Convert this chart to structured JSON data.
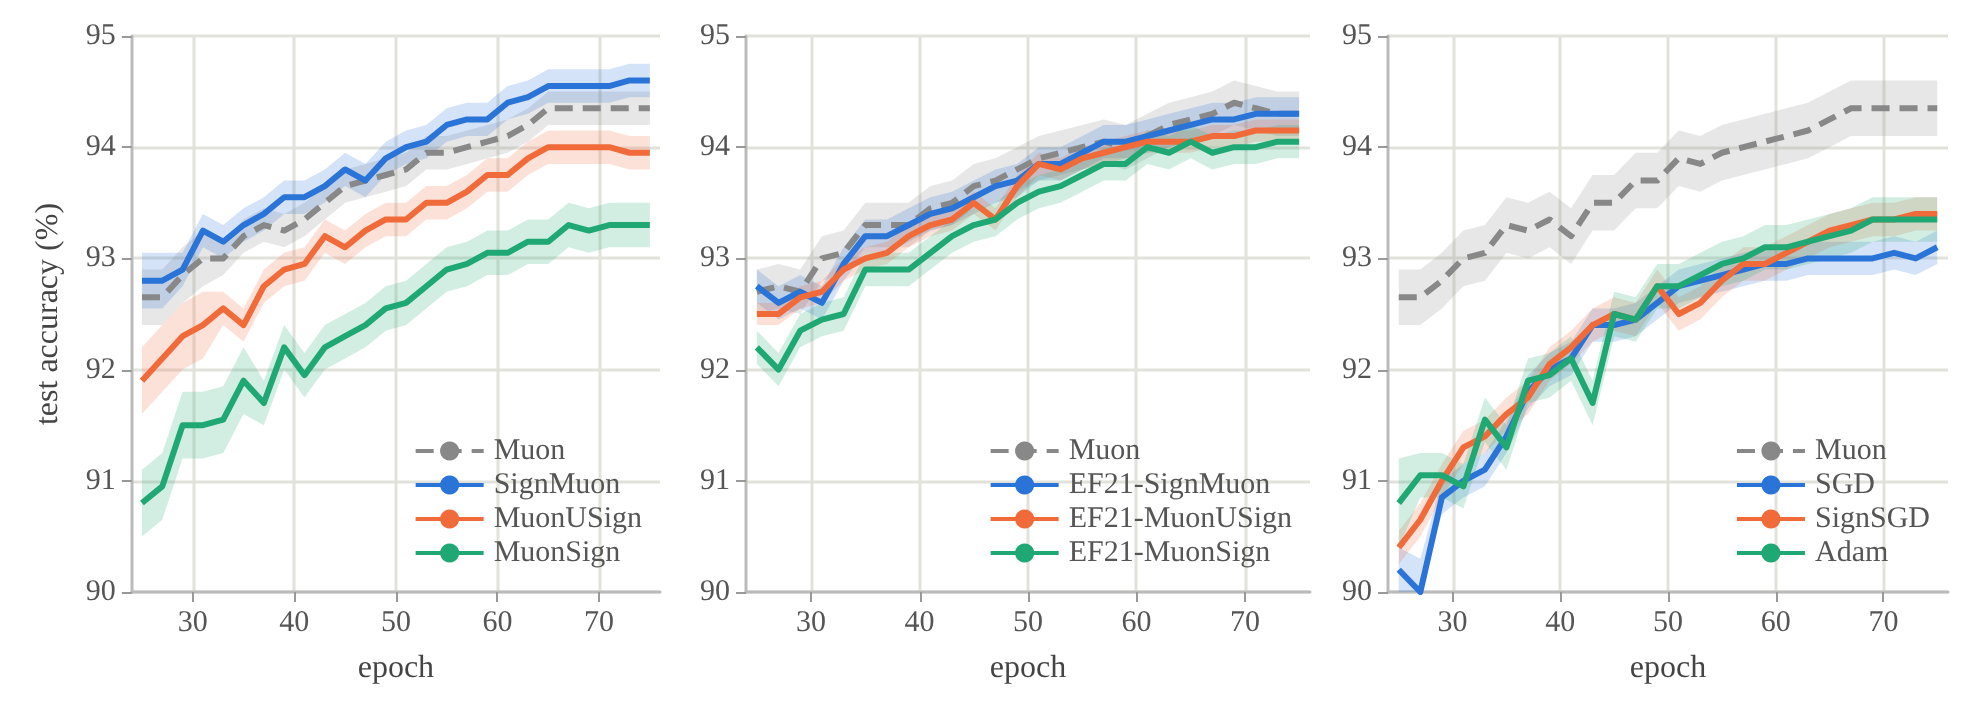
{
  "chart_data": [
    {
      "type": "line",
      "xlabel": "epoch",
      "ylabel": "test accuracy (%)",
      "xlim": [
        24,
        76
      ],
      "ylim": [
        90,
        95
      ],
      "xticks": [
        30,
        40,
        50,
        60,
        70
      ],
      "yticks": [
        90,
        91,
        92,
        93,
        94,
        95
      ],
      "grid": true,
      "legend": "bottom right",
      "x": [
        25,
        27,
        29,
        31,
        33,
        35,
        37,
        39,
        41,
        43,
        45,
        47,
        49,
        51,
        53,
        55,
        57,
        59,
        61,
        63,
        65,
        67,
        69,
        71,
        73,
        75
      ],
      "series": [
        {
          "name": "Muon",
          "color": "#888888",
          "line_style": "dashed",
          "values": [
            92.65,
            92.65,
            92.85,
            93.0,
            93.0,
            93.2,
            93.3,
            93.25,
            93.35,
            93.5,
            93.65,
            93.7,
            93.75,
            93.8,
            93.95,
            93.95,
            94.0,
            94.05,
            94.1,
            94.2,
            94.35,
            94.35,
            94.35,
            94.35,
            94.35,
            94.35
          ],
          "lower": [
            92.4,
            92.4,
            92.6,
            92.75,
            92.85,
            93.05,
            93.15,
            93.1,
            93.2,
            93.35,
            93.5,
            93.55,
            93.6,
            93.65,
            93.8,
            93.8,
            93.85,
            93.9,
            93.95,
            94.05,
            94.2,
            94.2,
            94.2,
            94.2,
            94.2,
            94.2
          ],
          "upper": [
            92.9,
            92.9,
            93.1,
            93.25,
            93.15,
            93.35,
            93.45,
            93.4,
            93.5,
            93.65,
            93.8,
            93.85,
            93.9,
            93.95,
            94.1,
            94.1,
            94.15,
            94.2,
            94.25,
            94.35,
            94.5,
            94.5,
            94.5,
            94.5,
            94.5,
            94.5
          ]
        },
        {
          "name": "SignMuon",
          "color": "#2a74d8",
          "values": [
            92.8,
            92.8,
            92.9,
            93.25,
            93.15,
            93.3,
            93.4,
            93.55,
            93.55,
            93.65,
            93.8,
            93.7,
            93.9,
            94.0,
            94.05,
            94.2,
            94.25,
            94.25,
            94.4,
            94.45,
            94.55,
            94.55,
            94.55,
            94.55,
            94.6,
            94.6
          ],
          "lower": [
            92.55,
            92.55,
            92.75,
            93.1,
            93.0,
            93.15,
            93.25,
            93.4,
            93.4,
            93.5,
            93.65,
            93.55,
            93.75,
            93.85,
            93.9,
            94.05,
            94.1,
            94.1,
            94.25,
            94.3,
            94.4,
            94.4,
            94.4,
            94.4,
            94.45,
            94.45
          ],
          "upper": [
            93.05,
            93.05,
            93.05,
            93.4,
            93.3,
            93.45,
            93.55,
            93.7,
            93.7,
            93.8,
            93.95,
            93.85,
            94.05,
            94.15,
            94.2,
            94.35,
            94.4,
            94.4,
            94.55,
            94.6,
            94.7,
            94.7,
            94.7,
            94.7,
            94.75,
            94.75
          ]
        },
        {
          "name": "MuonUSign",
          "color": "#f06a3a",
          "values": [
            91.9,
            92.1,
            92.3,
            92.4,
            92.55,
            92.4,
            92.75,
            92.9,
            92.95,
            93.2,
            93.1,
            93.25,
            93.35,
            93.35,
            93.5,
            93.5,
            93.6,
            93.75,
            93.75,
            93.9,
            94.0,
            94.0,
            94.0,
            94.0,
            93.95,
            93.95
          ],
          "lower": [
            91.6,
            91.8,
            92.0,
            92.1,
            92.4,
            92.25,
            92.6,
            92.75,
            92.8,
            93.05,
            92.95,
            93.1,
            93.2,
            93.2,
            93.35,
            93.35,
            93.45,
            93.6,
            93.6,
            93.75,
            93.85,
            93.85,
            93.85,
            93.85,
            93.8,
            93.8
          ],
          "upper": [
            92.2,
            92.4,
            92.6,
            92.7,
            92.7,
            92.55,
            92.9,
            93.05,
            93.1,
            93.35,
            93.25,
            93.4,
            93.5,
            93.5,
            93.65,
            93.65,
            93.75,
            93.9,
            93.9,
            94.05,
            94.15,
            94.15,
            94.15,
            94.15,
            94.1,
            94.1
          ]
        },
        {
          "name": "MuonSign",
          "color": "#20a874",
          "values": [
            90.8,
            90.95,
            91.5,
            91.5,
            91.55,
            91.9,
            91.7,
            92.2,
            91.95,
            92.2,
            92.3,
            92.4,
            92.55,
            92.6,
            92.75,
            92.9,
            92.95,
            93.05,
            93.05,
            93.15,
            93.15,
            93.3,
            93.25,
            93.3,
            93.3,
            93.3
          ],
          "lower": [
            90.5,
            90.65,
            91.2,
            91.2,
            91.25,
            91.6,
            91.5,
            92.0,
            91.75,
            92.0,
            92.1,
            92.2,
            92.35,
            92.4,
            92.55,
            92.7,
            92.75,
            92.85,
            92.85,
            92.95,
            92.95,
            93.1,
            93.05,
            93.1,
            93.1,
            93.1
          ],
          "upper": [
            91.1,
            91.25,
            91.8,
            91.8,
            91.85,
            92.2,
            91.9,
            92.4,
            92.15,
            92.4,
            92.5,
            92.6,
            92.75,
            92.8,
            92.95,
            93.1,
            93.15,
            93.25,
            93.25,
            93.35,
            93.35,
            93.5,
            93.45,
            93.5,
            93.5,
            93.5
          ]
        }
      ]
    },
    {
      "type": "line",
      "xlabel": "epoch",
      "xlim": [
        24,
        76
      ],
      "ylim": [
        90,
        95
      ],
      "xticks": [
        30,
        40,
        50,
        60,
        70
      ],
      "yticks": [
        90,
        91,
        92,
        93,
        94,
        95
      ],
      "grid": true,
      "legend": "bottom right",
      "x": [
        25,
        27,
        29,
        31,
        33,
        35,
        37,
        39,
        41,
        43,
        45,
        47,
        49,
        51,
        53,
        55,
        57,
        59,
        61,
        63,
        65,
        67,
        69,
        71,
        73,
        75
      ],
      "series": [
        {
          "name": "Muon",
          "color": "#888888",
          "line_style": "dashed",
          "values": [
            92.7,
            92.75,
            92.7,
            93.0,
            93.05,
            93.3,
            93.3,
            93.3,
            93.45,
            93.5,
            93.65,
            93.7,
            93.8,
            93.9,
            93.95,
            94.0,
            94.05,
            94.0,
            94.1,
            94.2,
            94.25,
            94.3,
            94.4,
            94.35,
            94.3,
            94.3
          ],
          "lower": [
            92.5,
            92.55,
            92.5,
            92.8,
            92.85,
            93.1,
            93.1,
            93.1,
            93.25,
            93.3,
            93.45,
            93.5,
            93.6,
            93.7,
            93.75,
            93.8,
            93.85,
            93.8,
            93.9,
            94.0,
            94.05,
            94.1,
            94.2,
            94.15,
            94.1,
            94.1
          ],
          "upper": [
            92.9,
            92.95,
            92.9,
            93.2,
            93.25,
            93.5,
            93.5,
            93.5,
            93.65,
            93.7,
            93.85,
            93.9,
            94.0,
            94.1,
            94.15,
            94.2,
            94.25,
            94.2,
            94.3,
            94.4,
            94.45,
            94.5,
            94.6,
            94.55,
            94.5,
            94.5
          ]
        },
        {
          "name": "EF21-SignMuon",
          "color": "#2a74d8",
          "values": [
            92.75,
            92.6,
            92.7,
            92.6,
            92.95,
            93.2,
            93.2,
            93.3,
            93.4,
            93.45,
            93.55,
            93.65,
            93.7,
            93.85,
            93.85,
            93.95,
            94.05,
            94.05,
            94.1,
            94.15,
            94.2,
            94.25,
            94.25,
            94.3,
            94.3,
            94.3
          ],
          "lower": [
            92.6,
            92.45,
            92.55,
            92.45,
            92.8,
            93.05,
            93.05,
            93.15,
            93.25,
            93.3,
            93.4,
            93.5,
            93.55,
            93.7,
            93.7,
            93.8,
            93.9,
            93.9,
            93.95,
            94.0,
            94.05,
            94.1,
            94.1,
            94.15,
            94.15,
            94.15
          ],
          "upper": [
            92.9,
            92.75,
            92.85,
            92.75,
            93.1,
            93.35,
            93.35,
            93.45,
            93.55,
            93.6,
            93.7,
            93.8,
            93.85,
            94.0,
            94.0,
            94.1,
            94.2,
            94.2,
            94.25,
            94.3,
            94.35,
            94.4,
            94.4,
            94.45,
            94.45,
            94.45
          ]
        },
        {
          "name": "EF21-MuonUSign",
          "color": "#f06a3a",
          "values": [
            92.5,
            92.5,
            92.65,
            92.7,
            92.9,
            93.0,
            93.05,
            93.2,
            93.3,
            93.35,
            93.5,
            93.35,
            93.65,
            93.85,
            93.8,
            93.9,
            93.95,
            94.0,
            94.05,
            94.05,
            94.05,
            94.1,
            94.1,
            94.15,
            94.15,
            94.15
          ],
          "lower": [
            92.4,
            92.4,
            92.55,
            92.6,
            92.8,
            92.9,
            92.95,
            93.1,
            93.2,
            93.25,
            93.4,
            93.25,
            93.55,
            93.75,
            93.7,
            93.8,
            93.85,
            93.9,
            93.95,
            93.95,
            93.95,
            94.0,
            94.0,
            94.05,
            94.05,
            94.05
          ],
          "upper": [
            92.6,
            92.6,
            92.75,
            92.8,
            93.0,
            93.1,
            93.15,
            93.3,
            93.4,
            93.45,
            93.6,
            93.45,
            93.75,
            93.95,
            93.9,
            94.0,
            94.05,
            94.1,
            94.15,
            94.15,
            94.15,
            94.2,
            94.2,
            94.25,
            94.25,
            94.25
          ]
        },
        {
          "name": "EF21-MuonSign",
          "color": "#20a874",
          "values": [
            92.2,
            92.0,
            92.35,
            92.45,
            92.5,
            92.9,
            92.9,
            92.9,
            93.05,
            93.2,
            93.3,
            93.35,
            93.5,
            93.6,
            93.65,
            93.75,
            93.85,
            93.85,
            94.0,
            93.95,
            94.05,
            93.95,
            94.0,
            94.0,
            94.05,
            94.05
          ],
          "lower": [
            92.05,
            91.85,
            92.2,
            92.3,
            92.35,
            92.75,
            92.75,
            92.75,
            92.9,
            93.05,
            93.15,
            93.2,
            93.35,
            93.45,
            93.5,
            93.6,
            93.7,
            93.7,
            93.85,
            93.8,
            93.9,
            93.8,
            93.85,
            93.85,
            93.9,
            93.9
          ],
          "upper": [
            92.35,
            92.15,
            92.5,
            92.6,
            92.65,
            93.05,
            93.05,
            93.05,
            93.2,
            93.35,
            93.45,
            93.5,
            93.65,
            93.75,
            93.8,
            93.9,
            94.0,
            94.0,
            94.15,
            94.1,
            94.2,
            94.1,
            94.15,
            94.15,
            94.2,
            94.2
          ]
        }
      ]
    },
    {
      "type": "line",
      "xlabel": "epoch",
      "xlim": [
        24,
        76
      ],
      "ylim": [
        90,
        95
      ],
      "xticks": [
        30,
        40,
        50,
        60,
        70
      ],
      "yticks": [
        90,
        91,
        92,
        93,
        94,
        95
      ],
      "grid": true,
      "legend": "bottom right",
      "x": [
        25,
        27,
        29,
        31,
        33,
        35,
        37,
        39,
        41,
        43,
        45,
        47,
        49,
        51,
        53,
        55,
        57,
        59,
        61,
        63,
        65,
        67,
        69,
        71,
        73,
        75
      ],
      "series": [
        {
          "name": "Muon",
          "color": "#888888",
          "line_style": "dashed",
          "values": [
            92.65,
            92.65,
            92.8,
            93.0,
            93.05,
            93.3,
            93.25,
            93.35,
            93.2,
            93.5,
            93.5,
            93.7,
            93.7,
            93.9,
            93.85,
            93.95,
            94.0,
            94.05,
            94.1,
            94.15,
            94.25,
            94.35,
            94.35,
            94.35,
            94.35,
            94.35
          ],
          "lower": [
            92.4,
            92.4,
            92.55,
            92.75,
            92.8,
            93.05,
            93.0,
            93.1,
            92.95,
            93.25,
            93.25,
            93.45,
            93.45,
            93.65,
            93.6,
            93.7,
            93.75,
            93.8,
            93.85,
            93.9,
            94.0,
            94.1,
            94.1,
            94.1,
            94.1,
            94.1
          ],
          "upper": [
            92.9,
            92.9,
            93.05,
            93.25,
            93.3,
            93.55,
            93.5,
            93.6,
            93.45,
            93.75,
            93.75,
            93.95,
            93.95,
            94.15,
            94.1,
            94.2,
            94.25,
            94.3,
            94.35,
            94.4,
            94.5,
            94.6,
            94.6,
            94.6,
            94.6,
            94.6
          ]
        },
        {
          "name": "SGD",
          "color": "#2a74d8",
          "values": [
            90.2,
            90.0,
            90.85,
            91.0,
            91.1,
            91.4,
            91.8,
            92.0,
            92.1,
            92.4,
            92.4,
            92.45,
            92.6,
            92.75,
            92.8,
            92.85,
            92.9,
            92.95,
            92.95,
            93.0,
            93.0,
            93.0,
            93.0,
            93.05,
            93.0,
            93.1
          ],
          "lower": [
            90.0,
            90.0,
            90.7,
            90.85,
            90.95,
            91.25,
            91.65,
            91.85,
            91.95,
            92.25,
            92.25,
            92.3,
            92.45,
            92.6,
            92.65,
            92.7,
            92.75,
            92.8,
            92.8,
            92.85,
            92.85,
            92.85,
            92.85,
            92.9,
            92.85,
            92.95
          ],
          "upper": [
            90.4,
            90.3,
            91.0,
            91.15,
            91.25,
            91.55,
            91.95,
            92.15,
            92.25,
            92.55,
            92.55,
            92.6,
            92.75,
            92.9,
            92.95,
            93.0,
            93.05,
            93.1,
            93.1,
            93.15,
            93.15,
            93.15,
            93.15,
            93.2,
            93.15,
            93.25
          ]
        },
        {
          "name": "SignSGD",
          "color": "#f06a3a",
          "values": [
            90.4,
            90.65,
            91.0,
            91.3,
            91.4,
            91.6,
            91.75,
            92.05,
            92.2,
            92.4,
            92.5,
            92.45,
            92.75,
            92.5,
            92.6,
            92.8,
            92.95,
            92.95,
            93.05,
            93.15,
            93.25,
            93.3,
            93.35,
            93.35,
            93.4,
            93.4
          ],
          "lower": [
            90.25,
            90.5,
            90.85,
            91.15,
            91.25,
            91.45,
            91.6,
            91.9,
            92.05,
            92.25,
            92.35,
            92.3,
            92.6,
            92.35,
            92.45,
            92.65,
            92.8,
            92.8,
            92.9,
            93.0,
            93.1,
            93.15,
            93.2,
            93.2,
            93.25,
            93.25
          ],
          "upper": [
            90.55,
            90.8,
            91.15,
            91.45,
            91.55,
            91.75,
            91.9,
            92.2,
            92.35,
            92.55,
            92.65,
            92.6,
            92.9,
            92.65,
            92.75,
            92.95,
            93.1,
            93.1,
            93.2,
            93.3,
            93.4,
            93.45,
            93.5,
            93.5,
            93.55,
            93.55
          ]
        },
        {
          "name": "Adam",
          "color": "#20a874",
          "values": [
            90.8,
            91.05,
            91.05,
            90.95,
            91.55,
            91.3,
            91.9,
            91.95,
            92.1,
            91.7,
            92.5,
            92.45,
            92.75,
            92.75,
            92.85,
            92.95,
            93.0,
            93.1,
            93.1,
            93.15,
            93.2,
            93.25,
            93.35,
            93.35,
            93.35,
            93.35
          ],
          "lower": [
            90.4,
            90.85,
            90.85,
            90.75,
            91.35,
            91.1,
            91.7,
            91.75,
            91.9,
            91.5,
            92.3,
            92.25,
            92.55,
            92.55,
            92.65,
            92.75,
            92.8,
            92.9,
            92.9,
            92.95,
            93.0,
            93.05,
            93.15,
            93.15,
            93.15,
            93.15
          ],
          "upper": [
            91.2,
            91.25,
            91.25,
            91.15,
            91.75,
            91.5,
            92.1,
            92.15,
            92.3,
            91.9,
            92.7,
            92.65,
            92.95,
            92.95,
            93.05,
            93.15,
            93.2,
            93.3,
            93.3,
            93.35,
            93.4,
            93.45,
            93.55,
            93.55,
            93.55,
            93.55
          ]
        }
      ]
    }
  ]
}
